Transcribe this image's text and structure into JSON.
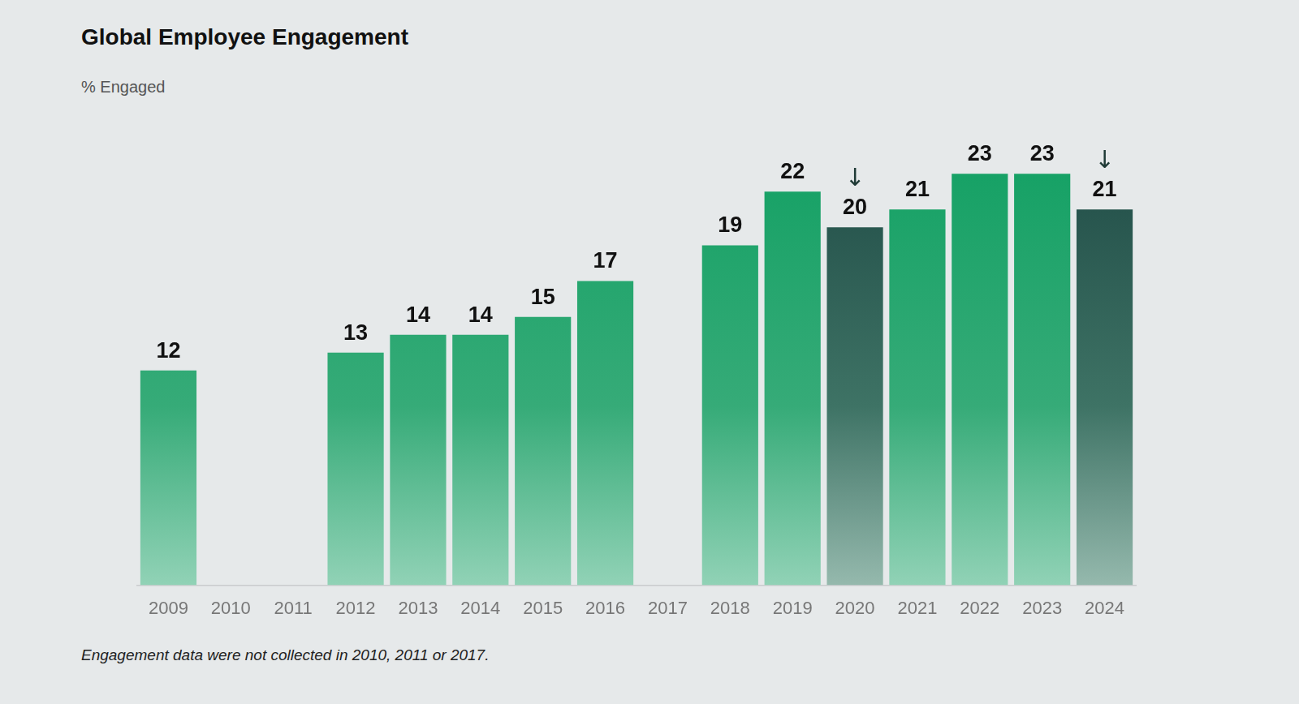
{
  "chart_data": {
    "type": "bar",
    "title": "Global Employee Engagement",
    "subtitle": "% Engaged",
    "note": "Engagement data were not collected in 2010, 2011 or 2017.",
    "categories": [
      "2009",
      "2010",
      "2011",
      "2012",
      "2013",
      "2014",
      "2015",
      "2016",
      "2017",
      "2018",
      "2019",
      "2020",
      "2021",
      "2022",
      "2023",
      "2024"
    ],
    "values": [
      12,
      null,
      null,
      13,
      14,
      14,
      15,
      17,
      null,
      19,
      22,
      20,
      21,
      23,
      23,
      21
    ],
    "colors": [
      "#12a063",
      "#12a063",
      "#12a063",
      "#12a063",
      "#12a063",
      "#12a063",
      "#12a063",
      "#12a063",
      "#12a063",
      "#12a063",
      "#12a063",
      "#1f4a45",
      "#12a063",
      "#12a063",
      "#12a063",
      "#1f4a45"
    ],
    "annotations": [
      {
        "category": "2020",
        "text": "↓"
      },
      {
        "category": "2024",
        "text": "↓"
      }
    ],
    "ylim": [
      0,
      25
    ],
    "yticks": [
      0,
      5,
      10,
      15,
      20,
      25
    ],
    "grid": false,
    "data_labels": true,
    "tick_labels": "x"
  }
}
